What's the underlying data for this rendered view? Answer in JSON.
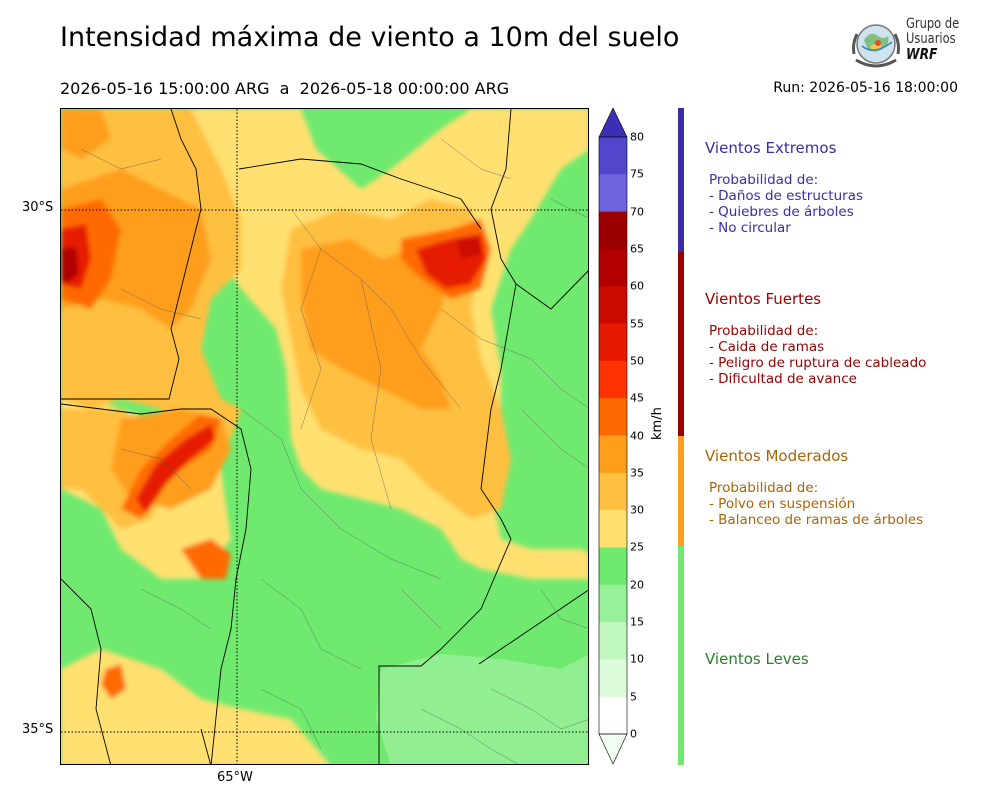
{
  "header": {
    "title": "Intensidad máxima de viento a 10m del suelo",
    "period_start": "2026-05-16 15:00:00 ARG",
    "period_sep": "a",
    "period_end": "2026-05-18 00:00:00 ARG",
    "run": "Run: 2026-05-16 18:00:00"
  },
  "logo": {
    "line1": "Grupo de",
    "line2": "Usuarios",
    "brand": "WRF",
    "icon": "globe-emblem-icon"
  },
  "map": {
    "lat_labels": [
      "30°S",
      "35°S"
    ],
    "lon_labels": [
      "65°W"
    ],
    "lat_range": [
      -35.3,
      -29.0
    ],
    "lon_range": [
      -66.0,
      -61.0
    ]
  },
  "colorbar": {
    "unit": "km/h",
    "ticks": [
      "80",
      "75",
      "70",
      "65",
      "60",
      "55",
      "50",
      "45",
      "40",
      "35",
      "30",
      "25",
      "20",
      "15",
      "10",
      "5",
      "0"
    ],
    "colors": [
      "#3a2fb5",
      "#5246cc",
      "#6e62dd",
      "#9b0000",
      "#b20000",
      "#cc0a00",
      "#e61a00",
      "#ff3300",
      "#ff6a00",
      "#ff9e1a",
      "#ffbf40",
      "#ffe070",
      "#6fea6f",
      "#98f098",
      "#bff7bf",
      "#dcfcdc",
      "#f0fff0"
    ]
  },
  "categories": [
    {
      "name": "Vientos Extremos",
      "color": "#3b2ca8",
      "heading": "Probabilidad de:",
      "items": [
        "- Daños de estructuras",
        "- Quiebres de árboles",
        "- No circular"
      ]
    },
    {
      "name": "Vientos Fuertes",
      "color": "#9b0000",
      "heading": "Probabilidad de:",
      "items": [
        "- Caida de ramas",
        "- Peligro de ruptura de cableado",
        "- Dificultad de avance"
      ]
    },
    {
      "name": "Vientos Moderados",
      "color": "#a8650a",
      "heading": "Probabilidad de:",
      "items": [
        "- Polvo en suspensión",
        "- Balanceo de ramas de árboles"
      ]
    },
    {
      "name": "Vientos Leves",
      "color": "#2e7d2e",
      "heading": "",
      "items": []
    }
  ]
}
